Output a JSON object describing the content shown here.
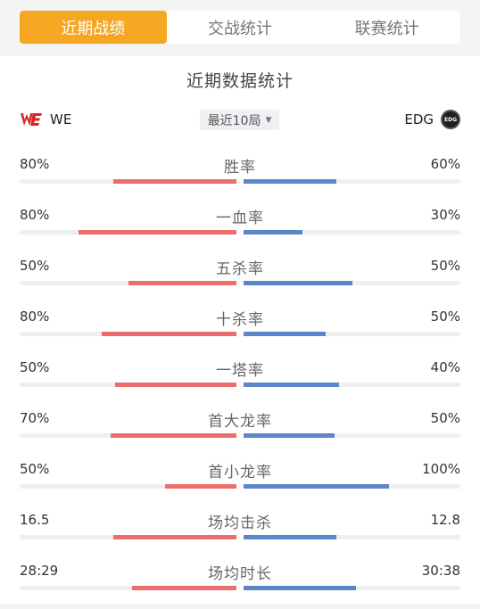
{
  "tabs": [
    {
      "label": "近期战绩",
      "active": true
    },
    {
      "label": "交战统计",
      "active": false
    },
    {
      "label": "联赛统计",
      "active": false
    }
  ],
  "section_title": "近期数据统计",
  "teams": {
    "left": {
      "name": "WE",
      "logo": "we-logo-icon"
    },
    "right": {
      "name": "EDG",
      "logo": "edg-logo-icon",
      "logo_text": "EDG"
    }
  },
  "range_select": {
    "value": "最近10局",
    "icon": "caret-down-icon"
  },
  "colors": {
    "accent": "#f5a623",
    "left_bar": "#ec6d6d",
    "right_bar": "#5b86c8"
  },
  "stats": [
    {
      "label": "胜率",
      "left": "80%",
      "right": "60%",
      "left_fraction": 0.57,
      "right_fraction": 0.43
    },
    {
      "label": "一血率",
      "left": "80%",
      "right": "30%",
      "left_fraction": 0.73,
      "right_fraction": 0.27
    },
    {
      "label": "五杀率",
      "left": "50%",
      "right": "50%",
      "left_fraction": 0.5,
      "right_fraction": 0.5
    },
    {
      "label": "十杀率",
      "left": "80%",
      "right": "50%",
      "left_fraction": 0.62,
      "right_fraction": 0.38
    },
    {
      "label": "一塔率",
      "left": "50%",
      "right": "40%",
      "left_fraction": 0.56,
      "right_fraction": 0.44
    },
    {
      "label": "首大龙率",
      "left": "70%",
      "right": "50%",
      "left_fraction": 0.58,
      "right_fraction": 0.42
    },
    {
      "label": "首小龙率",
      "left": "50%",
      "right": "100%",
      "left_fraction": 0.33,
      "right_fraction": 0.67
    },
    {
      "label": "场均击杀",
      "left": "16.5",
      "right": "12.8",
      "left_fraction": 0.57,
      "right_fraction": 0.43
    },
    {
      "label": "场均时长",
      "left": "28:29",
      "right": "30:38",
      "left_fraction": 0.48,
      "right_fraction": 0.52
    }
  ]
}
